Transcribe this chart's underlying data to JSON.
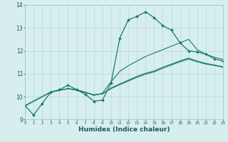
{
  "xlabel": "Humidex (Indice chaleur)",
  "bg_color": "#d6eeee",
  "grid_color": "#b8d8d8",
  "line_color": "#1a7a6e",
  "xlim": [
    0,
    23
  ],
  "ylim": [
    9,
    14
  ],
  "yticks": [
    9,
    10,
    11,
    12,
    13,
    14
  ],
  "xticks": [
    0,
    1,
    2,
    3,
    4,
    5,
    6,
    7,
    8,
    9,
    10,
    11,
    12,
    13,
    14,
    15,
    16,
    17,
    18,
    19,
    20,
    21,
    22,
    23
  ],
  "line1_x": [
    0,
    1,
    2,
    3,
    4,
    5,
    6,
    7,
    8,
    9,
    10,
    11,
    12,
    13,
    14,
    15,
    16,
    17,
    18,
    19,
    20,
    21,
    22,
    23
  ],
  "line1_y": [
    9.6,
    9.2,
    9.7,
    10.2,
    10.3,
    10.5,
    10.3,
    10.1,
    9.8,
    9.85,
    10.6,
    12.55,
    13.35,
    13.5,
    13.7,
    13.45,
    13.1,
    12.9,
    12.35,
    12.0,
    11.95,
    11.85,
    11.65,
    11.55
  ],
  "line2_x": [
    0,
    3,
    5,
    6,
    7,
    8,
    9,
    10,
    11,
    12,
    13,
    14,
    15,
    16,
    17,
    18,
    19,
    20,
    21,
    22,
    23
  ],
  "line2_y": [
    9.6,
    10.2,
    10.35,
    10.3,
    10.2,
    10.05,
    10.15,
    10.65,
    11.1,
    11.35,
    11.55,
    11.75,
    11.9,
    12.05,
    12.2,
    12.35,
    12.5,
    12.05,
    11.85,
    11.72,
    11.62
  ],
  "line3_x": [
    0,
    3,
    5,
    6,
    7,
    8,
    9,
    10,
    11,
    12,
    13,
    14,
    15,
    16,
    17,
    18,
    19,
    20,
    21,
    22,
    23
  ],
  "line3_y": [
    9.6,
    10.2,
    10.35,
    10.28,
    10.18,
    10.08,
    10.12,
    10.38,
    10.55,
    10.72,
    10.88,
    11.02,
    11.12,
    11.28,
    11.42,
    11.56,
    11.68,
    11.55,
    11.45,
    11.38,
    11.3
  ],
  "line4_x": [
    0,
    3,
    5,
    6,
    7,
    8,
    9,
    10,
    11,
    12,
    13,
    14,
    15,
    16,
    17,
    18,
    19,
    20,
    21,
    22,
    23
  ],
  "line4_y": [
    9.6,
    10.2,
    10.35,
    10.28,
    10.18,
    10.08,
    10.12,
    10.35,
    10.52,
    10.68,
    10.84,
    10.98,
    11.08,
    11.24,
    11.38,
    11.52,
    11.64,
    11.52,
    11.42,
    11.36,
    11.28
  ]
}
